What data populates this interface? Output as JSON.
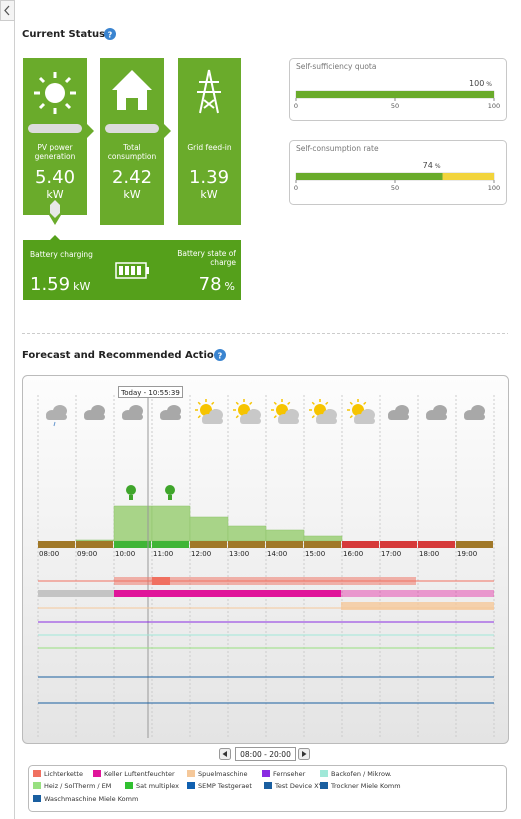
{
  "status": {
    "title": "Current Status",
    "tiles": [
      {
        "label": "PV power generation",
        "value": "5.40",
        "unit": "kW"
      },
      {
        "label": "Total consumption",
        "value": "2.42",
        "unit": "kW"
      },
      {
        "label": "Grid feed-in",
        "value": "1.39",
        "unit": "kW"
      }
    ],
    "battery": {
      "charging_label": "Battery charging",
      "charging_value": "1.59",
      "charging_unit": "kW",
      "soc_label": "Battery state of charge",
      "soc_value": "78",
      "soc_unit": "%"
    },
    "gauges": [
      {
        "title": "Self-sufficiency quota",
        "value": 100,
        "unit": "%",
        "ticks": [
          0,
          50,
          100
        ],
        "color": "#6aab2b",
        "rest_color": "#f2d43c"
      },
      {
        "title": "Self-consumption rate",
        "value": 74,
        "unit": "%",
        "ticks": [
          0,
          50,
          100
        ],
        "color": "#6aab2b",
        "rest_color": "#f2d43c"
      }
    ]
  },
  "forecast": {
    "title": "Forecast and Recommended Action",
    "tooltip": "Today - 10:55:39",
    "times": [
      "08:00",
      "09:00",
      "10:00",
      "11:00",
      "12:00",
      "13:00",
      "14:00",
      "15:00",
      "16:00",
      "17:00",
      "18:00",
      "19:00"
    ],
    "weather": [
      "rain",
      "cloud",
      "cloud",
      "cloud",
      "sun-cloud",
      "sun-cloud",
      "sun-cloud",
      "sun-cloud",
      "sun-cloud",
      "cloud",
      "cloud",
      "cloud"
    ],
    "hour_colors": [
      "#a07828",
      "#a07828",
      "#3fb536",
      "#3fb536",
      "#a07828",
      "#a07828",
      "#a07828",
      "#a07828",
      "#d63a3a",
      "#d63a3a",
      "#d63a3a",
      "#a07828"
    ],
    "pv_forecast": [
      0,
      0.1,
      3.5,
      3.5,
      2.4,
      1.5,
      1.1,
      0.5,
      0,
      0,
      0,
      0
    ],
    "pv_forecast_lim": [
      0,
      4
    ],
    "range": "08:00 - 20:00",
    "legend": [
      {
        "name": "Lichterkette",
        "color": "#f07060"
      },
      {
        "name": "Keller Luftentfeuchter",
        "color": "#e0159a"
      },
      {
        "name": "Spuelmaschine",
        "color": "#f5c89a"
      },
      {
        "name": "Fernseher",
        "color": "#8a2be2"
      },
      {
        "name": "Backofen / Mikrow.",
        "color": "#a0e8d8"
      },
      {
        "name": "Heiz / SolTherm / EM",
        "color": "#98e080"
      },
      {
        "name": "Sat multiplex",
        "color": "#30c030"
      },
      {
        "name": "SEMP Testgeraet",
        "color": "#1060b0"
      },
      {
        "name": "Test Device XYZ",
        "color": "#1a5fa0"
      },
      {
        "name": "Trockner Miele Komm",
        "color": "#1a5fa0"
      },
      {
        "name": "Waschmaschine Miele Komm",
        "color": "#1a5fa0"
      }
    ]
  }
}
